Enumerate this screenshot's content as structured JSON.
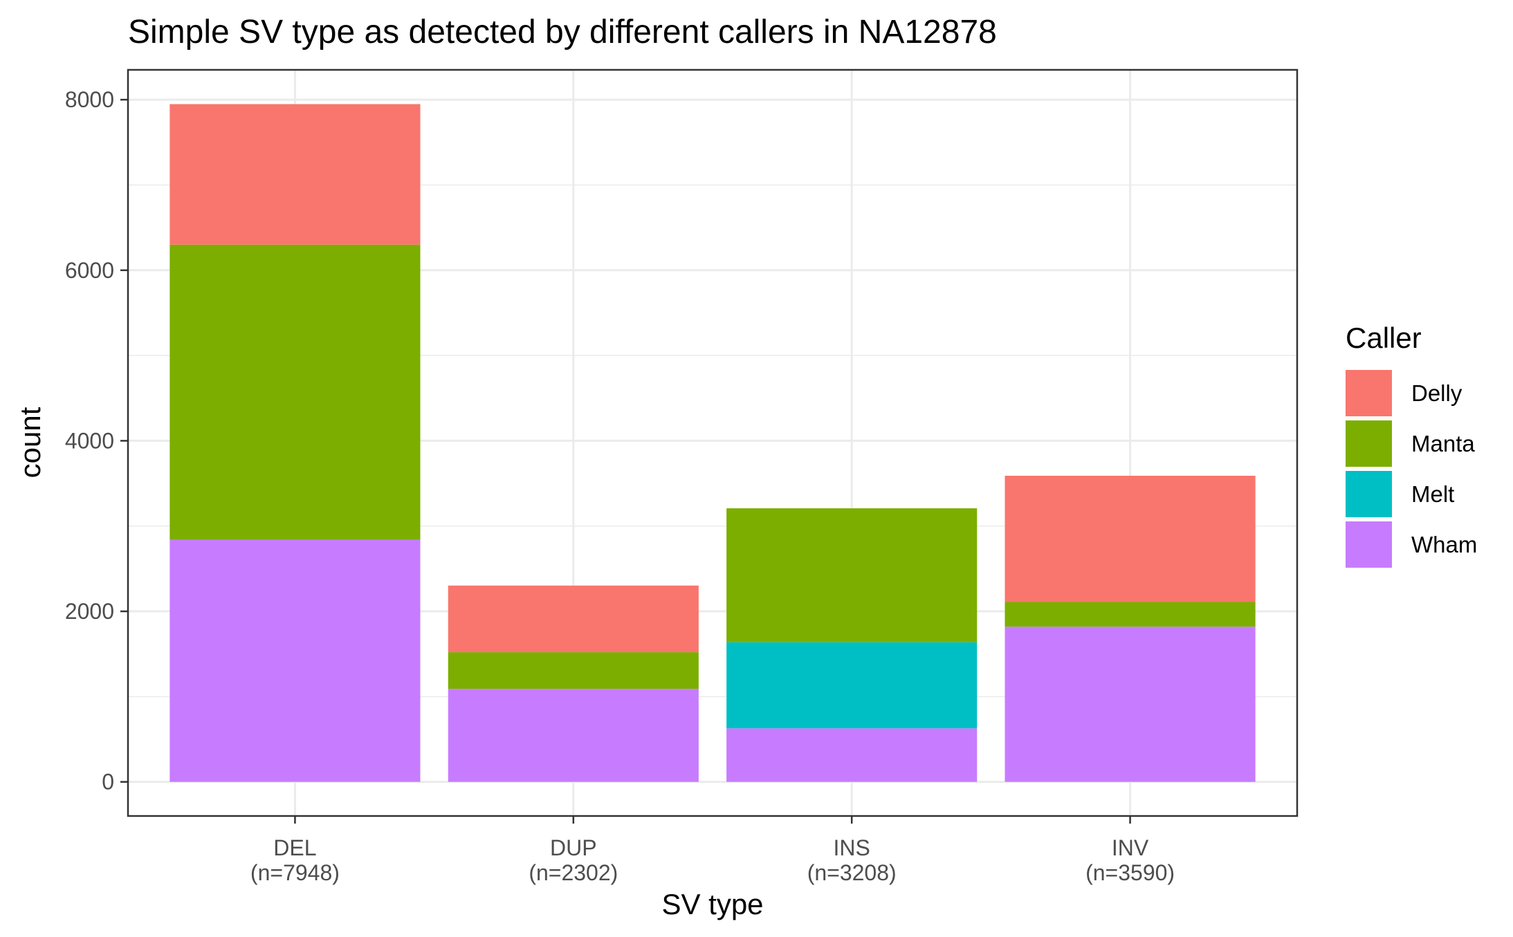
{
  "chart_data": {
    "type": "bar",
    "stacked": true,
    "title": "Simple SV type as detected by different callers in NA12878",
    "xlabel": "SV type",
    "ylabel": "count",
    "categories": [
      "DEL",
      "DUP",
      "INS",
      "INV"
    ],
    "category_labels": [
      [
        "DEL",
        "(n=7948)"
      ],
      [
        "DUP",
        "(n=2302)"
      ],
      [
        "INS",
        "(n=3208)"
      ],
      [
        "INV",
        "(n=3590)"
      ]
    ],
    "ylim": [
      -400,
      8350
    ],
    "yticks": [
      0,
      2000,
      4000,
      6000,
      8000
    ],
    "y_minor_ticks": [
      1000,
      3000,
      5000,
      7000
    ],
    "grid": true,
    "legend": {
      "title": "Caller",
      "position": "right"
    },
    "series": [
      {
        "name": "Delly",
        "color": "#F8766D",
        "values": [
          1648,
          781,
          0,
          1480
        ]
      },
      {
        "name": "Manta",
        "color": "#7CAE00",
        "values": [
          3460,
          430,
          1570,
          290
        ]
      },
      {
        "name": "Melt",
        "color": "#00BFC4",
        "values": [
          0,
          0,
          1010,
          0
        ]
      },
      {
        "name": "Wham",
        "color": "#C77CFF",
        "values": [
          2840,
          1091,
          628,
          1820
        ]
      }
    ],
    "stack_order_bottom_to_top": [
      "Wham",
      "Melt",
      "Manta",
      "Delly"
    ]
  }
}
